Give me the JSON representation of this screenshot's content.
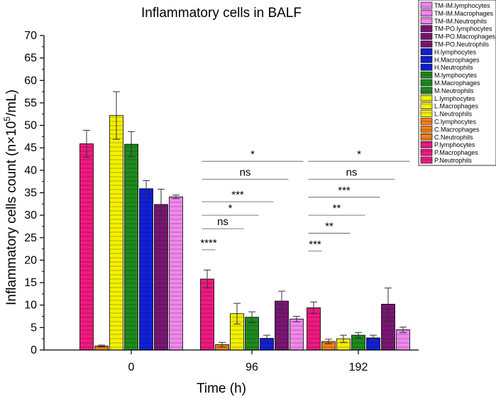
{
  "chart_data": {
    "type": "bar",
    "title": "Inflammatory cells in BALF",
    "xlabel": "Time (h)",
    "ylabel": "Inflammatory cells count (n×10",
    "ylabel_sup": "5",
    "ylabel_tail": "/mL)",
    "ylim": [
      0,
      70
    ],
    "yticks": [
      "0",
      "5",
      "10",
      "15",
      "20",
      "25",
      "30",
      "35",
      "40",
      "45",
      "50",
      "55",
      "60",
      "65",
      "70"
    ],
    "categories": [
      "0",
      "96",
      "192"
    ],
    "series": [
      {
        "name": "P",
        "color": "#ee1a80",
        "pattern": "horizontal",
        "values": [
          45.9,
          15.8,
          9.4
        ],
        "errors": [
          3.0,
          2.0,
          1.3
        ]
      },
      {
        "name": "C",
        "color": "#f08018",
        "pattern": "horizontal",
        "values": [
          0.9,
          1.2,
          1.9
        ],
        "errors": [
          0.2,
          0.5,
          0.5
        ]
      },
      {
        "name": "L",
        "color": "#f4f000",
        "pattern": "horizontal",
        "values": [
          52.2,
          8.1,
          2.5
        ],
        "errors": [
          5.3,
          2.3,
          0.8
        ]
      },
      {
        "name": "M",
        "color": "#1f8a1f",
        "pattern": "horizontal",
        "values": [
          45.8,
          7.3,
          3.3
        ],
        "errors": [
          2.8,
          1.2,
          0.6
        ]
      },
      {
        "name": "H",
        "color": "#1020d8",
        "pattern": "horizontal",
        "values": [
          35.9,
          2.6,
          2.7
        ],
        "errors": [
          1.8,
          0.7,
          0.6
        ]
      },
      {
        "name": "TM-PO",
        "color": "#7a1673",
        "pattern": "horizontal",
        "values": [
          32.4,
          10.9,
          10.2
        ],
        "errors": [
          3.4,
          2.2,
          3.6
        ]
      },
      {
        "name": "TM-IM",
        "color": "#f088ee",
        "pattern": "horizontal",
        "values": [
          34.1,
          6.9,
          4.5
        ],
        "errors": [
          0.4,
          0.6,
          0.6
        ]
      }
    ],
    "legend": [
      {
        "label": "TM-IM.lymphocytes",
        "color": "#f088ee"
      },
      {
        "label": "TM-IM.Macrophages",
        "color": "#f088ee"
      },
      {
        "label": "TM-IM.Neutrophils",
        "color": "#f088ee"
      },
      {
        "label": "TM-PO.lymphocytes",
        "color": "#7a1673"
      },
      {
        "label": "TM-PO.Macrophages",
        "color": "#7a1673"
      },
      {
        "label": "TM-PO.Neutrophils",
        "color": "#7a1673"
      },
      {
        "label": "H.lymphocytes",
        "color": "#1020d8"
      },
      {
        "label": "H.Macrophages",
        "color": "#1020d8"
      },
      {
        "label": "H.Neutrophils",
        "color": "#1020d8"
      },
      {
        "label": "M.lymphocytes",
        "color": "#1f8a1f"
      },
      {
        "label": "M.Macrophages",
        "color": "#1f8a1f"
      },
      {
        "label": "M.Neutrophils",
        "color": "#1f8a1f"
      },
      {
        "label": "L.lymphocytes",
        "color": "#f4f000"
      },
      {
        "label": "L.Macrophages",
        "color": "#f4f000"
      },
      {
        "label": "L.Neutrophils",
        "color": "#f4f000"
      },
      {
        "label": "C.lymphocytes",
        "color": "#f08018"
      },
      {
        "label": "C.Macrophages",
        "color": "#f08018"
      },
      {
        "label": "C.Neutrophils",
        "color": "#f08018"
      },
      {
        "label": "P.lymphocytes",
        "color": "#ee1a80"
      },
      {
        "label": "P.Macrophages",
        "color": "#ee1a80"
      },
      {
        "label": "P.Neutrophils",
        "color": "#ee1a80"
      }
    ],
    "significance": [
      {
        "category": "96",
        "label": "****",
        "y": 22.3,
        "from_series": 0,
        "to_series": 0
      },
      {
        "category": "96",
        "label": "ns",
        "y": 27.0,
        "from_series": 0,
        "to_series": 2
      },
      {
        "category": "96",
        "label": "*",
        "y": 30.0,
        "from_series": 0,
        "to_series": 3
      },
      {
        "category": "96",
        "label": "***",
        "y": 33.0,
        "from_series": 0,
        "to_series": 4
      },
      {
        "category": "96",
        "label": "ns",
        "y": 38.0,
        "from_series": 0,
        "to_series": 5
      },
      {
        "category": "96",
        "label": "*",
        "y": 42.0,
        "from_series": 0,
        "to_series": 6
      },
      {
        "category": "192",
        "label": "***",
        "y": 22.0,
        "from_series": 0,
        "to_series": 0
      },
      {
        "category": "192",
        "label": "**",
        "y": 26.0,
        "from_series": 0,
        "to_series": 2
      },
      {
        "category": "192",
        "label": "**",
        "y": 30.0,
        "from_series": 0,
        "to_series": 3
      },
      {
        "category": "192",
        "label": "***",
        "y": 34.0,
        "from_series": 0,
        "to_series": 4
      },
      {
        "category": "192",
        "label": "ns",
        "y": 38.0,
        "from_series": 0,
        "to_series": 5
      },
      {
        "category": "192",
        "label": "*",
        "y": 42.0,
        "from_series": 0,
        "to_series": 6
      }
    ]
  }
}
